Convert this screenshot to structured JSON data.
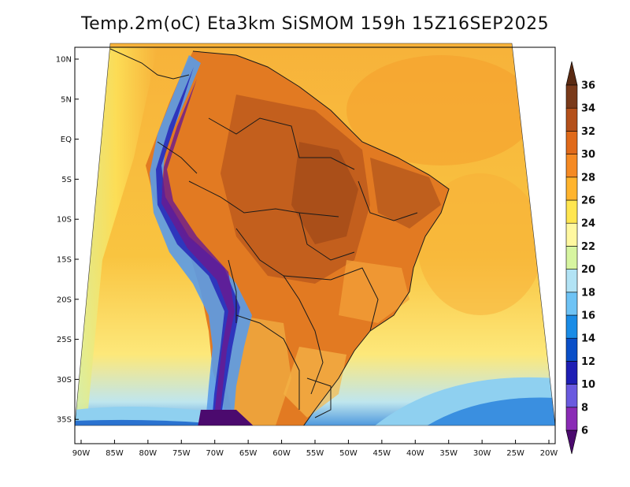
{
  "title": "Temp.2m(oC) Eta3km SiSMOM 159h 15Z16SEP2025",
  "lat_labels": [
    "10N",
    "5N",
    "EQ",
    "5S",
    "10S",
    "15S",
    "20S",
    "25S",
    "30S",
    "35S"
  ],
  "lon_labels": [
    "90W",
    "85W",
    "80W",
    "75W",
    "70W",
    "65W",
    "60W",
    "55W",
    "50W",
    "45W",
    "40W",
    "35W",
    "30W",
    "25W",
    "20W"
  ],
  "colorbar": {
    "labels": [
      "6",
      "8",
      "10",
      "12",
      "14",
      "16",
      "18",
      "20",
      "22",
      "24",
      "26",
      "28",
      "30",
      "32",
      "34",
      "36"
    ],
    "colors": [
      "#4b0a6e",
      "#8a2bb5",
      "#6a5adf",
      "#1e1eb4",
      "#0a4fc8",
      "#1a8ce6",
      "#6ec3f5",
      "#b2e3f5",
      "#d7f5a0",
      "#fff8a0",
      "#ffe650",
      "#ffb42d",
      "#f58a23",
      "#e06a1a",
      "#b4501a",
      "#7a3a1a",
      "#5a2a12"
    ]
  }
}
